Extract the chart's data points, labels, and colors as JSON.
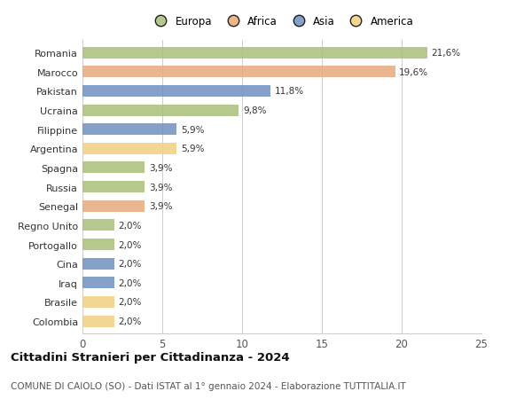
{
  "categories": [
    "Romania",
    "Marocco",
    "Pakistan",
    "Ucraina",
    "Filippine",
    "Argentina",
    "Spagna",
    "Russia",
    "Senegal",
    "Regno Unito",
    "Portogallo",
    "Cina",
    "Iraq",
    "Brasile",
    "Colombia"
  ],
  "values": [
    21.6,
    19.6,
    11.8,
    9.8,
    5.9,
    5.9,
    3.9,
    3.9,
    3.9,
    2.0,
    2.0,
    2.0,
    2.0,
    2.0,
    2.0
  ],
  "labels": [
    "21,6%",
    "19,6%",
    "11,8%",
    "9,8%",
    "5,9%",
    "5,9%",
    "3,9%",
    "3,9%",
    "3,9%",
    "2,0%",
    "2,0%",
    "2,0%",
    "2,0%",
    "2,0%",
    "2,0%"
  ],
  "continents": [
    "Europa",
    "Africa",
    "Asia",
    "Europa",
    "Asia",
    "America",
    "Europa",
    "Europa",
    "Africa",
    "Europa",
    "Europa",
    "Asia",
    "Asia",
    "America",
    "America"
  ],
  "colors": {
    "Europa": "#a8c07a",
    "Africa": "#e8a87c",
    "Asia": "#7090c0",
    "America": "#f0d080"
  },
  "legend_order": [
    "Europa",
    "Africa",
    "Asia",
    "America"
  ],
  "xlim": [
    0,
    25
  ],
  "xticks": [
    0,
    5,
    10,
    15,
    20,
    25
  ],
  "title": "Cittadini Stranieri per Cittadinanza - 2024",
  "subtitle": "COMUNE DI CAIOLO (SO) - Dati ISTAT al 1° gennaio 2024 - Elaborazione TUTTITALIA.IT",
  "background_color": "#ffffff",
  "grid_color": "#cccccc",
  "bar_height": 0.6,
  "label_fontsize": 7.5,
  "ytick_fontsize": 8.0,
  "xtick_fontsize": 8.5,
  "title_fontsize": 9.5,
  "subtitle_fontsize": 7.5
}
